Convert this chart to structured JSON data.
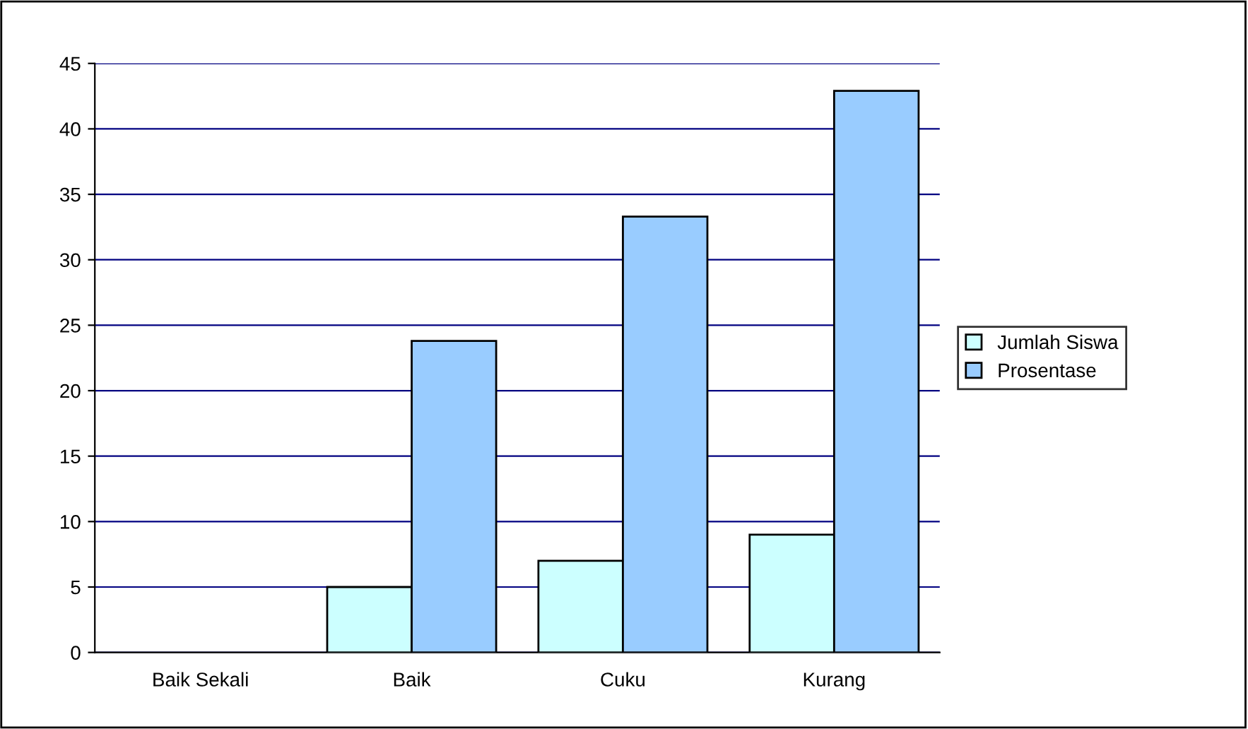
{
  "chart_data": {
    "type": "bar",
    "categories": [
      "Baik Sekali",
      "Baik",
      "Cuku",
      "Kurang"
    ],
    "series": [
      {
        "name": "Jumlah Siswa",
        "color": "#ccffff",
        "values": [
          0,
          5,
          7,
          9
        ]
      },
      {
        "name": "Prosentase",
        "color": "#99ccff",
        "values": [
          0,
          23.8,
          33.3,
          42.9
        ]
      }
    ],
    "ylim": [
      0,
      45
    ],
    "yticks": [
      0,
      5,
      10,
      15,
      20,
      25,
      30,
      35,
      40,
      45
    ],
    "grid": "y",
    "legend": "right"
  }
}
